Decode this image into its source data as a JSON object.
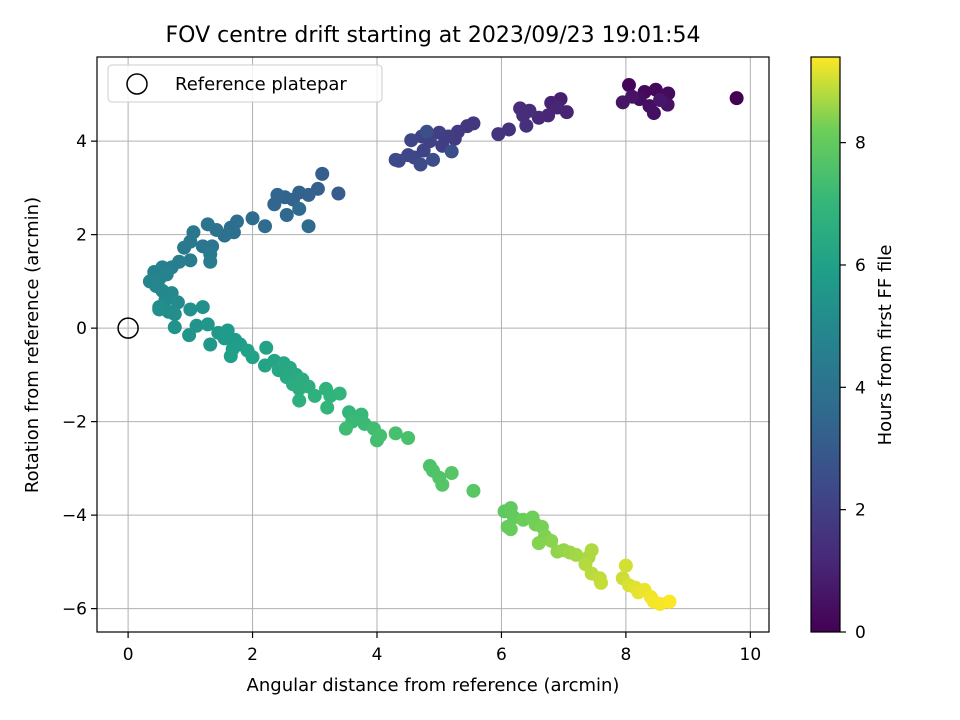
{
  "chart_data": {
    "type": "scatter",
    "title": "FOV centre drift starting at 2023/09/23 19:01:54",
    "xlabel": "Angular distance from reference (arcmin)",
    "ylabel": "Rotation from reference (arcmin)",
    "xlim": [
      -0.5,
      10.3
    ],
    "ylim": [
      -6.5,
      5.8
    ],
    "xticks": [
      0,
      2,
      4,
      6,
      8,
      10
    ],
    "yticks": [
      -6,
      -4,
      -2,
      0,
      2,
      4
    ],
    "grid": true,
    "legend": {
      "placement": "top-left",
      "entries": [
        {
          "label": "Reference platepar",
          "marker": "open-circle"
        }
      ]
    },
    "reference_point": {
      "x": 0,
      "y": 0
    },
    "colorbar": {
      "label": "Hours from first FF file",
      "colormap": "viridis",
      "range": [
        0,
        9.4
      ],
      "ticks": [
        0,
        2,
        4,
        6,
        8
      ]
    },
    "series": [
      {
        "points": [
          [
            9.78,
            4.92,
            0.0
          ],
          [
            8.05,
            5.2,
            0.15
          ],
          [
            8.3,
            5.05,
            0.2
          ],
          [
            8.48,
            5.1,
            0.25
          ],
          [
            8.68,
            5.02,
            0.3
          ],
          [
            8.22,
            4.9,
            0.35
          ],
          [
            8.38,
            4.75,
            0.4
          ],
          [
            8.45,
            4.6,
            0.45
          ],
          [
            8.67,
            4.78,
            0.5
          ],
          [
            7.95,
            4.83,
            0.6
          ],
          [
            8.1,
            4.95,
            0.55
          ],
          [
            8.55,
            4.88,
            0.65
          ],
          [
            6.95,
            4.9,
            0.9
          ],
          [
            6.8,
            4.82,
            1.0
          ],
          [
            7.05,
            4.62,
            1.05
          ],
          [
            6.9,
            4.72,
            1.1
          ],
          [
            6.75,
            4.55,
            1.15
          ],
          [
            6.6,
            4.5,
            1.2
          ],
          [
            6.45,
            4.65,
            1.3
          ],
          [
            6.3,
            4.7,
            1.35
          ],
          [
            6.35,
            4.55,
            1.4
          ],
          [
            6.4,
            4.33,
            1.45
          ],
          [
            6.12,
            4.25,
            1.5
          ],
          [
            5.95,
            4.15,
            1.6
          ],
          [
            5.55,
            4.38,
            1.7
          ],
          [
            5.45,
            4.32,
            1.75
          ],
          [
            5.3,
            4.2,
            1.8
          ],
          [
            5.25,
            4.05,
            1.85
          ],
          [
            5.15,
            4.1,
            1.9
          ],
          [
            5.0,
            4.18,
            1.95
          ],
          [
            5.05,
            3.9,
            2.0
          ],
          [
            4.85,
            4.0,
            2.05
          ],
          [
            4.72,
            4.1,
            2.1
          ],
          [
            4.75,
            3.8,
            2.15
          ],
          [
            4.55,
            4.02,
            2.2
          ],
          [
            4.6,
            3.65,
            2.25
          ],
          [
            4.5,
            3.7,
            2.3
          ],
          [
            4.35,
            3.58,
            2.35
          ],
          [
            4.3,
            3.6,
            2.4
          ],
          [
            4.7,
            3.5,
            2.45
          ],
          [
            4.9,
            3.6,
            2.5
          ],
          [
            5.2,
            3.78,
            2.55
          ],
          [
            4.8,
            4.2,
            2.6
          ],
          [
            3.38,
            2.88,
            3.1
          ],
          [
            3.12,
            3.3,
            3.15
          ],
          [
            3.05,
            2.98,
            3.2
          ],
          [
            2.9,
            2.85,
            3.25
          ],
          [
            2.75,
            2.9,
            3.3
          ],
          [
            2.65,
            2.75,
            3.35
          ],
          [
            2.52,
            2.8,
            3.4
          ],
          [
            2.4,
            2.85,
            3.45
          ],
          [
            2.35,
            2.65,
            3.5
          ],
          [
            2.55,
            2.42,
            3.55
          ],
          [
            2.75,
            2.55,
            3.6
          ],
          [
            2.9,
            2.18,
            3.65
          ],
          [
            2.2,
            2.18,
            3.7
          ],
          [
            2.0,
            2.35,
            3.75
          ],
          [
            1.75,
            2.28,
            3.8
          ],
          [
            1.65,
            2.15,
            3.85
          ],
          [
            1.7,
            2.05,
            3.9
          ],
          [
            1.55,
            1.98,
            3.95
          ],
          [
            1.42,
            2.1,
            4.0
          ],
          [
            1.28,
            2.22,
            4.05
          ],
          [
            1.35,
            1.75,
            4.1
          ],
          [
            1.2,
            1.75,
            4.15
          ],
          [
            1.05,
            2.05,
            4.2
          ],
          [
            1.0,
            1.85,
            4.25
          ],
          [
            0.9,
            1.72,
            4.3
          ],
          [
            1.32,
            1.58,
            4.35
          ],
          [
            1.32,
            1.42,
            4.4
          ],
          [
            1.0,
            1.45,
            4.45
          ],
          [
            0.82,
            1.42,
            4.5
          ],
          [
            0.7,
            1.3,
            4.55
          ],
          [
            0.55,
            1.3,
            4.6
          ],
          [
            0.42,
            1.2,
            4.65
          ],
          [
            0.62,
            1.15,
            4.7
          ],
          [
            0.5,
            1.05,
            4.75
          ],
          [
            0.35,
            1.0,
            4.8
          ],
          [
            0.45,
            0.9,
            4.85
          ],
          [
            0.55,
            0.8,
            4.9
          ],
          [
            0.7,
            0.75,
            4.95
          ],
          [
            0.6,
            0.6,
            5.0
          ],
          [
            0.8,
            0.55,
            5.05
          ],
          [
            0.5,
            0.45,
            5.1
          ],
          [
            0.65,
            0.35,
            5.15
          ],
          [
            0.75,
            0.3,
            5.2
          ],
          [
            0.5,
            0.4,
            5.25
          ],
          [
            1.0,
            0.4,
            5.3
          ],
          [
            1.2,
            0.45,
            5.35
          ],
          [
            0.75,
            0.02,
            5.4
          ],
          [
            1.1,
            0.05,
            5.45
          ],
          [
            0.98,
            -0.15,
            5.5
          ],
          [
            1.28,
            0.08,
            5.55
          ],
          [
            1.32,
            -0.35,
            5.6
          ],
          [
            1.45,
            -0.1,
            5.65
          ],
          [
            1.6,
            -0.05,
            5.7
          ],
          [
            1.55,
            -0.22,
            5.75
          ],
          [
            1.72,
            -0.25,
            5.8
          ],
          [
            1.8,
            -0.35,
            5.85
          ],
          [
            1.68,
            -0.45,
            5.9
          ],
          [
            1.65,
            -0.6,
            5.95
          ],
          [
            1.92,
            -0.48,
            6.0
          ],
          [
            2.0,
            -0.62,
            6.05
          ],
          [
            2.22,
            -0.42,
            6.1
          ],
          [
            2.2,
            -0.8,
            6.15
          ],
          [
            2.35,
            -0.7,
            6.2
          ],
          [
            2.42,
            -0.9,
            6.25
          ],
          [
            2.5,
            -0.75,
            6.3
          ],
          [
            2.6,
            -0.85,
            6.35
          ],
          [
            2.55,
            -1.05,
            6.4
          ],
          [
            2.7,
            -1.0,
            6.45
          ],
          [
            2.65,
            -1.2,
            6.5
          ],
          [
            2.8,
            -1.1,
            6.55
          ],
          [
            2.75,
            -1.3,
            6.6
          ],
          [
            2.9,
            -1.25,
            6.65
          ],
          [
            2.75,
            -1.55,
            6.7
          ],
          [
            3.0,
            -1.45,
            6.75
          ],
          [
            3.18,
            -1.3,
            6.8
          ],
          [
            3.25,
            -1.45,
            6.85
          ],
          [
            3.4,
            -1.4,
            6.9
          ],
          [
            3.2,
            -1.7,
            6.95
          ],
          [
            3.55,
            -1.8,
            7.0
          ],
          [
            3.65,
            -1.9,
            7.05
          ],
          [
            3.75,
            -1.85,
            7.1
          ],
          [
            3.6,
            -2.0,
            7.15
          ],
          [
            3.8,
            -2.05,
            7.2
          ],
          [
            3.5,
            -2.15,
            7.25
          ],
          [
            3.95,
            -2.15,
            7.3
          ],
          [
            4.0,
            -2.4,
            7.35
          ],
          [
            4.05,
            -2.3,
            7.4
          ],
          [
            4.3,
            -2.25,
            7.45
          ],
          [
            4.5,
            -2.35,
            7.5
          ],
          [
            4.85,
            -2.95,
            7.55
          ],
          [
            4.9,
            -3.05,
            7.6
          ],
          [
            5.0,
            -3.2,
            7.65
          ],
          [
            5.05,
            -3.35,
            7.7
          ],
          [
            5.2,
            -3.1,
            7.75
          ],
          [
            5.55,
            -3.48,
            7.8
          ],
          [
            6.05,
            -3.92,
            7.9
          ],
          [
            6.15,
            -3.85,
            7.95
          ],
          [
            6.2,
            -4.05,
            8.0
          ],
          [
            6.1,
            -4.25,
            8.05
          ],
          [
            6.15,
            -4.3,
            8.1
          ],
          [
            6.35,
            -4.1,
            8.15
          ],
          [
            6.5,
            -4.05,
            8.2
          ],
          [
            6.55,
            -4.2,
            8.25
          ],
          [
            6.65,
            -4.25,
            8.3
          ],
          [
            6.7,
            -4.45,
            8.35
          ],
          [
            6.6,
            -4.6,
            8.4
          ],
          [
            6.8,
            -4.55,
            8.45
          ],
          [
            6.9,
            -4.78,
            8.5
          ],
          [
            7.0,
            -4.75,
            8.55
          ],
          [
            7.1,
            -4.8,
            8.6
          ],
          [
            7.2,
            -4.85,
            8.65
          ],
          [
            7.4,
            -4.9,
            8.7
          ],
          [
            7.45,
            -4.75,
            8.75
          ],
          [
            7.35,
            -5.05,
            8.8
          ],
          [
            7.45,
            -5.25,
            8.85
          ],
          [
            7.58,
            -5.35,
            8.9
          ],
          [
            7.6,
            -5.45,
            8.95
          ],
          [
            7.95,
            -5.35,
            9.0
          ],
          [
            8.0,
            -5.08,
            9.05
          ],
          [
            8.05,
            -5.5,
            9.1
          ],
          [
            8.15,
            -5.55,
            9.15
          ],
          [
            8.2,
            -5.65,
            9.2
          ],
          [
            8.3,
            -5.6,
            9.25
          ],
          [
            8.4,
            -5.75,
            9.3
          ],
          [
            8.45,
            -5.85,
            9.32
          ],
          [
            8.55,
            -5.9,
            9.35
          ],
          [
            8.7,
            -5.85,
            9.38
          ]
        ]
      }
    ]
  }
}
